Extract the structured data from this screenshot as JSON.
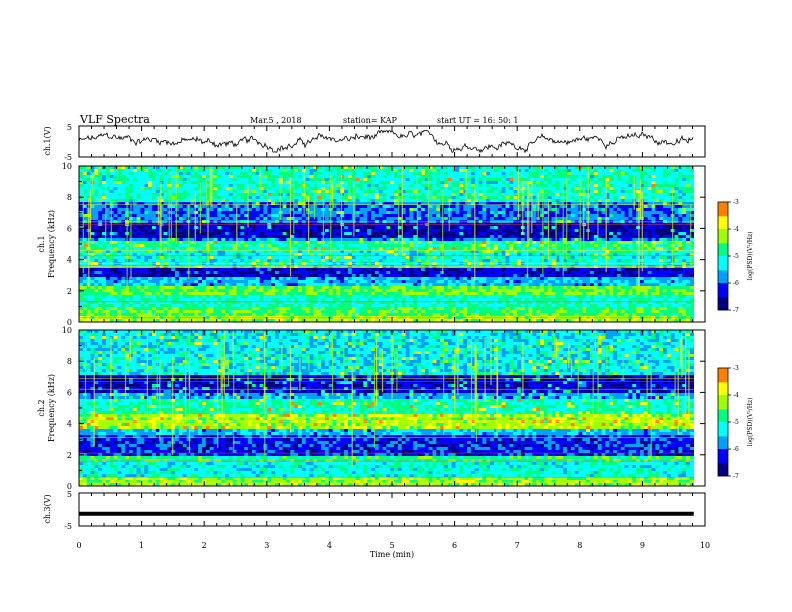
{
  "header": {
    "title": "VLF Spectra",
    "date": "Mar.5  , 2018",
    "station": "station= KAP",
    "start": "start  UT  =    16: 50: 1"
  },
  "chart_data": [
    {
      "type": "line",
      "panel": "ch1-waveform",
      "ylabel": "ch.1(V)",
      "ylim": [
        -5,
        5
      ],
      "xlim": [
        0,
        10
      ],
      "x_data_end": 9.82,
      "note_values": "waveform rendered as noisy oscillation within about -3..3 V",
      "y_ticks": [
        "5",
        "-5"
      ]
    },
    {
      "type": "heatmap",
      "panel": "ch1-spectrogram",
      "ylabel": "ch.1\nFrequency  (kHz)",
      "ylabel_lines": [
        "ch.1",
        "Frequency  (kHz)"
      ],
      "ylim": [
        0,
        10
      ],
      "y_ticks": [
        "0",
        "2",
        "4",
        "6",
        "8",
        "10"
      ],
      "xlim": [
        0,
        10
      ],
      "x_data_end": 9.82,
      "colorbar": {
        "label": "log(PSD)(V²/Hz)",
        "range": [
          -7,
          -3
        ],
        "ticks": [
          "-3",
          "-4",
          "-5",
          "-6",
          "-7"
        ]
      },
      "bands": [
        {
          "f0": 0.0,
          "f1": 0.4,
          "level": -4.2
        },
        {
          "f0": 0.4,
          "f1": 1.0,
          "level": -4.6
        },
        {
          "f0": 1.0,
          "f1": 1.8,
          "level": -5.0
        },
        {
          "f0": 1.8,
          "f1": 2.4,
          "level": -4.5
        },
        {
          "f0": 2.4,
          "f1": 2.8,
          "level": -5.6
        },
        {
          "f0": 2.8,
          "f1": 3.5,
          "level": -6.4
        },
        {
          "f0": 3.5,
          "f1": 4.6,
          "level": -5.2
        },
        {
          "f0": 4.6,
          "f1": 5.1,
          "level": -4.8
        },
        {
          "f0": 5.1,
          "f1": 5.4,
          "level": -5.8
        },
        {
          "f0": 5.4,
          "f1": 6.4,
          "level": -6.5
        },
        {
          "f0": 6.4,
          "f1": 7.6,
          "level": -5.9
        },
        {
          "f0": 7.6,
          "f1": 10.0,
          "level": -5.1
        }
      ]
    },
    {
      "type": "heatmap",
      "panel": "ch2-spectrogram",
      "ylabel": "ch.2\nFrequency  (kHz)",
      "ylabel_lines": [
        "ch.2",
        "Frequency  (kHz)"
      ],
      "ylim": [
        0,
        10
      ],
      "y_ticks": [
        "0",
        "2",
        "4",
        "6",
        "8",
        "10"
      ],
      "xlim": [
        0,
        10
      ],
      "x_data_end": 9.82,
      "colorbar": {
        "label": "log(PSD)(V²/Hz)",
        "range": [
          -7,
          -3
        ],
        "ticks": [
          "-3",
          "-4",
          "-5",
          "-6",
          "-7"
        ]
      },
      "bands": [
        {
          "f0": 0.0,
          "f1": 0.6,
          "level": -4.3
        },
        {
          "f0": 0.6,
          "f1": 1.6,
          "level": -5.2
        },
        {
          "f0": 1.6,
          "f1": 2.0,
          "level": -4.7
        },
        {
          "f0": 2.0,
          "f1": 3.2,
          "level": -6.2
        },
        {
          "f0": 3.2,
          "f1": 3.6,
          "level": -5.6
        },
        {
          "f0": 3.6,
          "f1": 4.6,
          "level": -4.2
        },
        {
          "f0": 4.6,
          "f1": 5.6,
          "level": -5.0
        },
        {
          "f0": 5.6,
          "f1": 6.0,
          "level": -5.7
        },
        {
          "f0": 6.0,
          "f1": 7.2,
          "level": -6.4
        },
        {
          "f0": 7.2,
          "f1": 10.0,
          "level": -5.3
        }
      ]
    },
    {
      "type": "line",
      "panel": "ch3-waveform",
      "ylabel": "ch.3(V)",
      "ylim": [
        -5,
        5
      ],
      "y_ticks": [
        "5",
        "-5"
      ],
      "xlim": [
        0,
        10
      ],
      "x_data_end": 9.82,
      "constant_value": -1.3
    }
  ],
  "x_axis": {
    "label": "Time  (min)",
    "ticks": [
      "0",
      "1",
      "2",
      "3",
      "4",
      "5",
      "6",
      "7",
      "8",
      "9",
      "10"
    ]
  },
  "colors": {
    "colormap": [
      "#000080",
      "#0000ff",
      "#00a0ff",
      "#00ffff",
      "#00ff80",
      "#a0ff00",
      "#ffff00",
      "#ff8000",
      "#ff0000",
      "#ffffff"
    ]
  }
}
